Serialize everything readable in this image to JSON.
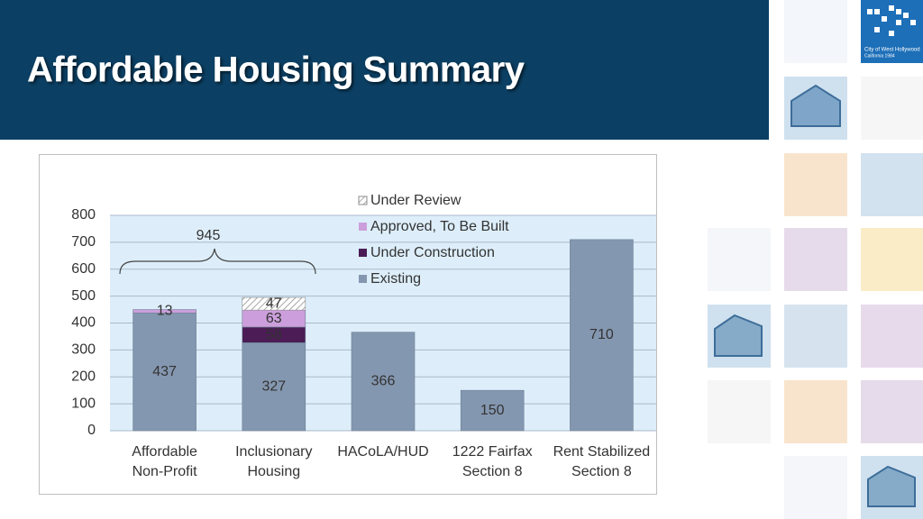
{
  "header": {
    "title": "Affordable Housing Summary",
    "logo_text": "City of West Hollywood",
    "logo_subtext": "California 1984"
  },
  "chart_data": {
    "type": "stacked_bar",
    "categories": [
      [
        "Affordable",
        "Non-Profit"
      ],
      [
        "Inclusionary",
        "Housing"
      ],
      [
        "HACoLA/HUD"
      ],
      [
        "1222 Fairfax",
        "Section 8"
      ],
      [
        "Rent Stabilized",
        "Section 8"
      ]
    ],
    "series": [
      {
        "name": "Existing",
        "color": "#8497b0",
        "values": [
          437,
          327,
          366,
          150,
          710
        ]
      },
      {
        "name": "Under Construction",
        "color": "#4b1c55",
        "values": [
          null,
          58,
          null,
          null,
          null
        ]
      },
      {
        "name": "Approved, To Be Built",
        "color": "#cc9fdc",
        "values": [
          13,
          63,
          null,
          null,
          null
        ]
      },
      {
        "name": "Under Review",
        "color": "#8c8c8c",
        "hatch": true,
        "values": [
          null,
          47,
          null,
          null,
          null
        ]
      }
    ],
    "annotations": [
      {
        "label": "945"
      }
    ],
    "ylim": [
      0,
      800
    ],
    "yticks": [
      0,
      100,
      200,
      300,
      400,
      500,
      600,
      700,
      800
    ],
    "grid": true
  }
}
